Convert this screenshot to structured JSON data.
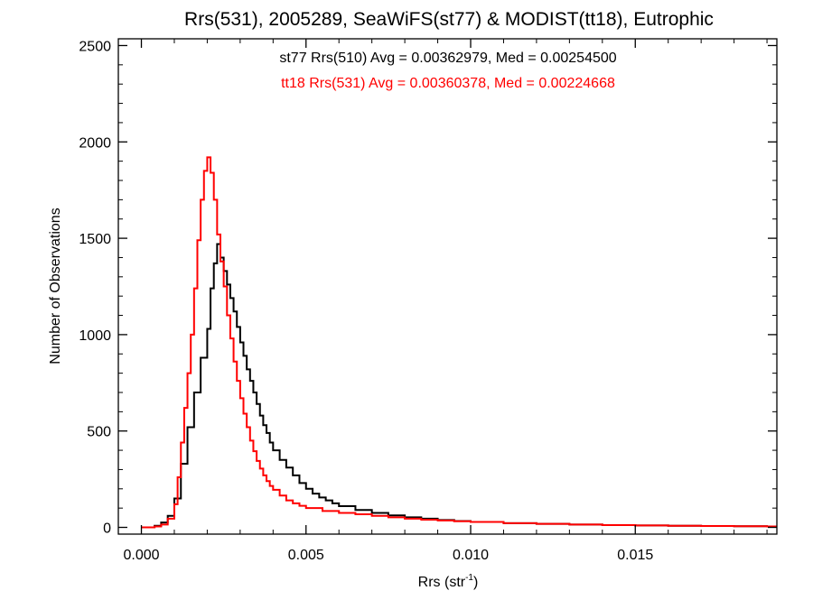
{
  "chart_data": {
    "type": "line",
    "title": "Rrs(531), 2005289, SeaWiFS(st77) & MODIST(tt18), Eutrophic",
    "xlabel": "Rrs (str",
    "xlabel_sup": "-1",
    "xlabel_end": ")",
    "ylabel": "Number of Observations",
    "xlim": [
      -0.0007,
      0.0193
    ],
    "ylim": [
      -35,
      2535
    ],
    "x_ticks": [
      0.0,
      0.005,
      0.01,
      0.015
    ],
    "x_tick_labels": [
      "0.000",
      "0.005",
      "0.010",
      "0.015"
    ],
    "y_ticks": [
      0,
      500,
      1000,
      1500,
      2000,
      2500
    ],
    "y_tick_labels": [
      "0",
      "500",
      "1000",
      "1500",
      "2000",
      "2500"
    ],
    "grid": false,
    "annotations": [
      {
        "text": "st77 Rrs(510) Avg = 0.00362979, Med = 0.00254500",
        "color": "#000000"
      },
      {
        "text": "tt18 Rrs(531) Avg = 0.00360378, Med = 0.00224668",
        "color": "#ff0000"
      }
    ],
    "series": [
      {
        "color": "#000000",
        "points": [
          [
            0.0,
            0
          ],
          [
            0.0004,
            8
          ],
          [
            0.0006,
            25
          ],
          [
            0.0008,
            60
          ],
          [
            0.001,
            150
          ],
          [
            0.0012,
            330
          ],
          [
            0.0014,
            520
          ],
          [
            0.0016,
            700
          ],
          [
            0.0018,
            880
          ],
          [
            0.002,
            1030
          ],
          [
            0.0021,
            1240
          ],
          [
            0.0022,
            1370
          ],
          [
            0.0023,
            1470
          ],
          [
            0.0024,
            1400
          ],
          [
            0.0025,
            1330
          ],
          [
            0.0026,
            1260
          ],
          [
            0.0027,
            1190
          ],
          [
            0.0028,
            1120
          ],
          [
            0.0029,
            1040
          ],
          [
            0.003,
            960
          ],
          [
            0.0031,
            890
          ],
          [
            0.0032,
            820
          ],
          [
            0.0033,
            760
          ],
          [
            0.0034,
            700
          ],
          [
            0.0035,
            640
          ],
          [
            0.0036,
            580
          ],
          [
            0.0037,
            530
          ],
          [
            0.0038,
            490
          ],
          [
            0.0039,
            440
          ],
          [
            0.004,
            400
          ],
          [
            0.0042,
            350
          ],
          [
            0.0044,
            310
          ],
          [
            0.0046,
            270
          ],
          [
            0.0048,
            230
          ],
          [
            0.005,
            200
          ],
          [
            0.0052,
            175
          ],
          [
            0.0054,
            155
          ],
          [
            0.0056,
            140
          ],
          [
            0.0058,
            125
          ],
          [
            0.006,
            110
          ],
          [
            0.0065,
            90
          ],
          [
            0.007,
            75
          ],
          [
            0.0075,
            62
          ],
          [
            0.008,
            52
          ],
          [
            0.0085,
            45
          ],
          [
            0.009,
            38
          ],
          [
            0.0095,
            33
          ],
          [
            0.01,
            28
          ],
          [
            0.011,
            22
          ],
          [
            0.012,
            18
          ],
          [
            0.013,
            15
          ],
          [
            0.014,
            12
          ],
          [
            0.015,
            10
          ],
          [
            0.016,
            8
          ],
          [
            0.017,
            7
          ],
          [
            0.018,
            6
          ],
          [
            0.019,
            5
          ]
        ]
      },
      {
        "color": "#ff0000",
        "points": [
          [
            0.0,
            0
          ],
          [
            0.0004,
            5
          ],
          [
            0.0006,
            15
          ],
          [
            0.0008,
            45
          ],
          [
            0.001,
            120
          ],
          [
            0.0011,
            260
          ],
          [
            0.0012,
            440
          ],
          [
            0.0013,
            620
          ],
          [
            0.0014,
            800
          ],
          [
            0.0015,
            1000
          ],
          [
            0.0016,
            1240
          ],
          [
            0.0017,
            1490
          ],
          [
            0.0018,
            1700
          ],
          [
            0.0019,
            1850
          ],
          [
            0.002,
            1920
          ],
          [
            0.0021,
            1840
          ],
          [
            0.0022,
            1700
          ],
          [
            0.0023,
            1520
          ],
          [
            0.0024,
            1380
          ],
          [
            0.0025,
            1250
          ],
          [
            0.0026,
            1100
          ],
          [
            0.0027,
            980
          ],
          [
            0.0028,
            860
          ],
          [
            0.0029,
            760
          ],
          [
            0.003,
            670
          ],
          [
            0.0031,
            590
          ],
          [
            0.0032,
            520
          ],
          [
            0.0033,
            450
          ],
          [
            0.0034,
            395
          ],
          [
            0.0035,
            345
          ],
          [
            0.0036,
            305
          ],
          [
            0.0037,
            270
          ],
          [
            0.0038,
            240
          ],
          [
            0.0039,
            215
          ],
          [
            0.004,
            195
          ],
          [
            0.0042,
            165
          ],
          [
            0.0044,
            140
          ],
          [
            0.0046,
            125
          ],
          [
            0.0048,
            112
          ],
          [
            0.005,
            100
          ],
          [
            0.0055,
            85
          ],
          [
            0.006,
            75
          ],
          [
            0.0065,
            68
          ],
          [
            0.007,
            60
          ],
          [
            0.0075,
            52
          ],
          [
            0.008,
            45
          ],
          [
            0.0085,
            40
          ],
          [
            0.009,
            36
          ],
          [
            0.0095,
            32
          ],
          [
            0.01,
            28
          ],
          [
            0.011,
            22
          ],
          [
            0.012,
            18
          ],
          [
            0.013,
            15
          ],
          [
            0.014,
            12
          ],
          [
            0.015,
            10
          ],
          [
            0.016,
            8
          ],
          [
            0.017,
            7
          ],
          [
            0.018,
            6
          ],
          [
            0.019,
            5
          ]
        ]
      }
    ]
  }
}
